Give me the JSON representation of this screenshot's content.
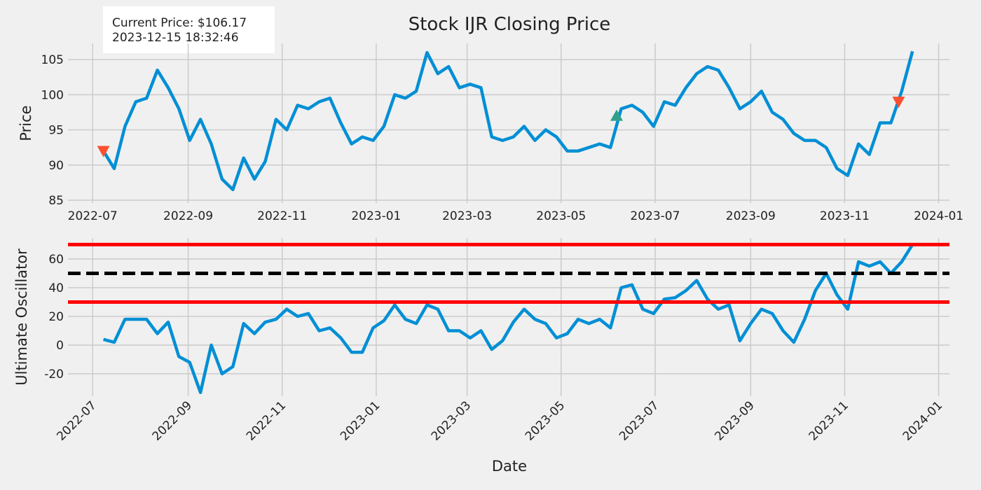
{
  "chart_data": {
    "type": "line",
    "title": "Stock IJR Closing Price",
    "annotation": [
      "Current Price: $106.17",
      "2023-12-15 18:32:46"
    ],
    "xlabel": "Date",
    "x": [
      "2022-07-08",
      "2022-07-15",
      "2022-07-22",
      "2022-07-29",
      "2022-08-05",
      "2022-08-12",
      "2022-08-19",
      "2022-08-26",
      "2022-09-02",
      "2022-09-09",
      "2022-09-16",
      "2022-09-23",
      "2022-09-30",
      "2022-10-07",
      "2022-10-14",
      "2022-10-21",
      "2022-10-28",
      "2022-11-04",
      "2022-11-11",
      "2022-11-18",
      "2022-11-25",
      "2022-12-02",
      "2022-12-09",
      "2022-12-16",
      "2022-12-23",
      "2022-12-30",
      "2023-01-06",
      "2023-01-13",
      "2023-01-20",
      "2023-01-27",
      "2023-02-03",
      "2023-02-10",
      "2023-02-17",
      "2023-02-24",
      "2023-03-03",
      "2023-03-10",
      "2023-03-17",
      "2023-03-24",
      "2023-03-31",
      "2023-04-07",
      "2023-04-14",
      "2023-04-21",
      "2023-04-28",
      "2023-05-05",
      "2023-05-12",
      "2023-05-19",
      "2023-05-26",
      "2023-06-02",
      "2023-06-09",
      "2023-06-16",
      "2023-06-23",
      "2023-06-30",
      "2023-07-07",
      "2023-07-14",
      "2023-07-21",
      "2023-07-28",
      "2023-08-04",
      "2023-08-11",
      "2023-08-18",
      "2023-08-25",
      "2023-09-01",
      "2023-09-08",
      "2023-09-15",
      "2023-09-22",
      "2023-09-29",
      "2023-10-06",
      "2023-10-13",
      "2023-10-20",
      "2023-10-27",
      "2023-11-03",
      "2023-11-10",
      "2023-11-17",
      "2023-11-24",
      "2023-12-01",
      "2023-12-08",
      "2023-12-15"
    ],
    "xlim": [
      "2022-06-15",
      "2024-01-08"
    ],
    "xticks": [
      "2022-07",
      "2022-09",
      "2022-11",
      "2023-01",
      "2023-03",
      "2023-05",
      "2023-07",
      "2023-09",
      "2023-11",
      "2024-01"
    ],
    "grid": true,
    "panels": [
      {
        "ylabel": "Price",
        "ylim": [
          84.6,
          107.3
        ],
        "yticks": [
          85,
          90,
          95,
          100,
          105
        ],
        "series": [
          {
            "color": "#008fd5",
            "values": [
              92,
              89.5,
              95.5,
              99,
              99.5,
              103.5,
              101,
              98,
              93.5,
              96.5,
              93,
              88,
              86.5,
              91,
              88,
              90.5,
              96.5,
              95,
              98.5,
              98,
              99,
              99.5,
              96,
              93,
              94,
              93.5,
              95.5,
              100,
              99.5,
              100.5,
              106,
              103,
              104,
              101,
              101.5,
              101,
              94,
              93.5,
              94,
              95.5,
              93.5,
              95,
              94,
              92,
              92,
              92.5,
              93,
              92.5,
              98,
              98.5,
              97.5,
              95.5,
              99,
              98.5,
              101,
              103,
              104,
              103.5,
              101,
              98,
              99,
              100.5,
              97.5,
              96.5,
              94.5,
              93.5,
              93.5,
              92.5,
              89.5,
              88.5,
              93,
              91.5,
              96,
              96,
              100.5,
              106.17
            ]
          }
        ],
        "markers": [
          {
            "x": "2022-07-08",
            "value": 92,
            "shape": "down",
            "color": "#fc4f30"
          },
          {
            "x": "2023-06-06",
            "value": 97,
            "shape": "up",
            "color": "#30a08c"
          },
          {
            "x": "2023-12-06",
            "value": 99,
            "shape": "down",
            "color": "#fc4f30"
          }
        ]
      },
      {
        "ylabel": "Ultimate Oscillator",
        "ylim": [
          -35.6,
          74.6
        ],
        "yticks": [
          -20,
          0,
          20,
          40,
          60
        ],
        "series": [
          {
            "color": "#008fd5",
            "values": [
              4,
              2,
              18,
              18,
              18,
              8,
              16,
              -8,
              -12,
              -33,
              0,
              -20,
              -15,
              15,
              8,
              16,
              18,
              25,
              20,
              22,
              10,
              12,
              5,
              -5,
              -5,
              12,
              17,
              28,
              18,
              15,
              28,
              25,
              10,
              10,
              5,
              10,
              -3,
              3,
              16,
              25,
              18,
              15,
              5,
              8,
              18,
              15,
              18,
              12,
              40,
              42,
              25,
              22,
              32,
              33,
              38,
              45,
              32,
              25,
              28,
              3,
              15,
              25,
              22,
              10,
              2,
              18,
              38,
              50,
              35,
              25,
              58,
              55,
              58,
              50,
              58,
              70
            ]
          }
        ],
        "hlines": [
          {
            "value": 70,
            "color": "#ff0000",
            "dash": false
          },
          {
            "value": 50,
            "color": "#000000",
            "dash": true
          },
          {
            "value": 30,
            "color": "#ff0000",
            "dash": false
          }
        ]
      }
    ]
  }
}
